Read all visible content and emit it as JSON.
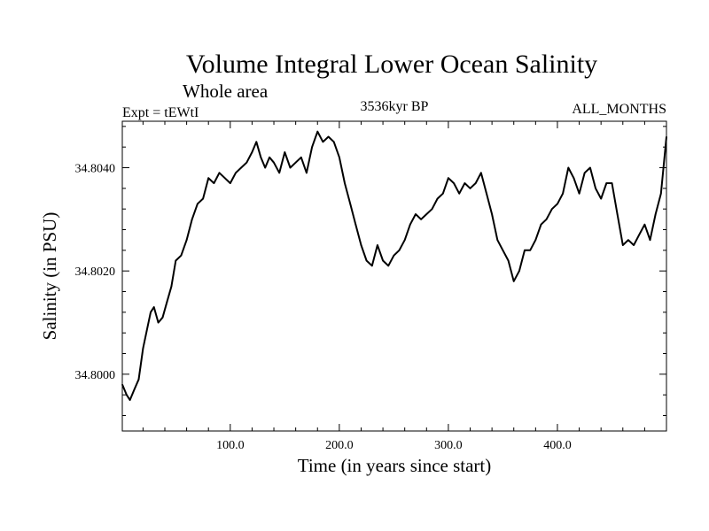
{
  "chart_data": {
    "type": "line",
    "title": "Volume Integral Lower Ocean Salinity",
    "subtitle": "Whole area",
    "left_label": "Expt = tEWtI",
    "center_label": "3536kyr BP",
    "right_label": "ALL_MONTHS",
    "xlabel": "Time (in years since start)",
    "ylabel": "Salinity (in PSU)",
    "xlim": [
      1,
      500
    ],
    "ylim": [
      34.7989,
      34.8049
    ],
    "x_ticks": [
      100,
      200,
      300,
      400
    ],
    "x_tick_labels": [
      "100.0",
      "200.0",
      "300.0",
      "400.0"
    ],
    "y_ticks": [
      34.8,
      34.802,
      34.804
    ],
    "y_tick_labels": [
      "34.8000",
      "34.8020",
      "34.8040"
    ],
    "grid": false,
    "series": [
      {
        "name": "Salinity",
        "color": "#000000",
        "x": [
          1,
          5,
          8,
          12,
          16,
          20,
          24,
          27,
          30,
          34,
          38,
          42,
          46,
          50,
          55,
          60,
          65,
          70,
          75,
          80,
          85,
          90,
          95,
          100,
          105,
          110,
          115,
          120,
          124,
          128,
          132,
          136,
          140,
          145,
          150,
          155,
          160,
          165,
          170,
          175,
          180,
          185,
          190,
          195,
          200,
          205,
          210,
          215,
          220,
          225,
          230,
          235,
          240,
          245,
          250,
          255,
          260,
          265,
          270,
          275,
          280,
          285,
          290,
          295,
          300,
          305,
          310,
          315,
          320,
          325,
          330,
          335,
          340,
          345,
          350,
          355,
          360,
          365,
          370,
          375,
          380,
          385,
          390,
          395,
          400,
          405,
          410,
          415,
          420,
          425,
          430,
          435,
          440,
          445,
          450,
          455,
          460,
          465,
          470,
          475,
          480,
          485,
          490,
          495,
          500
        ],
        "values": [
          34.7998,
          34.7996,
          34.7995,
          34.7997,
          34.7999,
          34.8005,
          34.8009,
          34.8012,
          34.8013,
          34.801,
          34.8011,
          34.8014,
          34.8017,
          34.8022,
          34.8023,
          34.8026,
          34.803,
          34.8033,
          34.8034,
          34.8038,
          34.8037,
          34.8039,
          34.8038,
          34.8037,
          34.8039,
          34.804,
          34.8041,
          34.8043,
          34.8045,
          34.8042,
          34.804,
          34.8042,
          34.8041,
          34.8039,
          34.8043,
          34.804,
          34.8041,
          34.8042,
          34.8039,
          34.8044,
          34.8047,
          34.8045,
          34.8046,
          34.8045,
          34.8042,
          34.8037,
          34.8033,
          34.8029,
          34.8025,
          34.8022,
          34.8021,
          34.8025,
          34.8022,
          34.8021,
          34.8023,
          34.8024,
          34.8026,
          34.8029,
          34.8031,
          34.803,
          34.8031,
          34.8032,
          34.8034,
          34.8035,
          34.8038,
          34.8037,
          34.8035,
          34.8037,
          34.8036,
          34.8037,
          34.8039,
          34.8035,
          34.8031,
          34.8026,
          34.8024,
          34.8022,
          34.8018,
          34.802,
          34.8024,
          34.8024,
          34.8026,
          34.8029,
          34.803,
          34.8032,
          34.8033,
          34.8035,
          34.804,
          34.8038,
          34.8035,
          34.8039,
          34.804,
          34.8036,
          34.8034,
          34.8037,
          34.8037,
          34.8031,
          34.8025,
          34.8026,
          34.8025,
          34.8027,
          34.8029,
          34.8026,
          34.8031,
          34.8035,
          34.8046
        ]
      }
    ]
  }
}
